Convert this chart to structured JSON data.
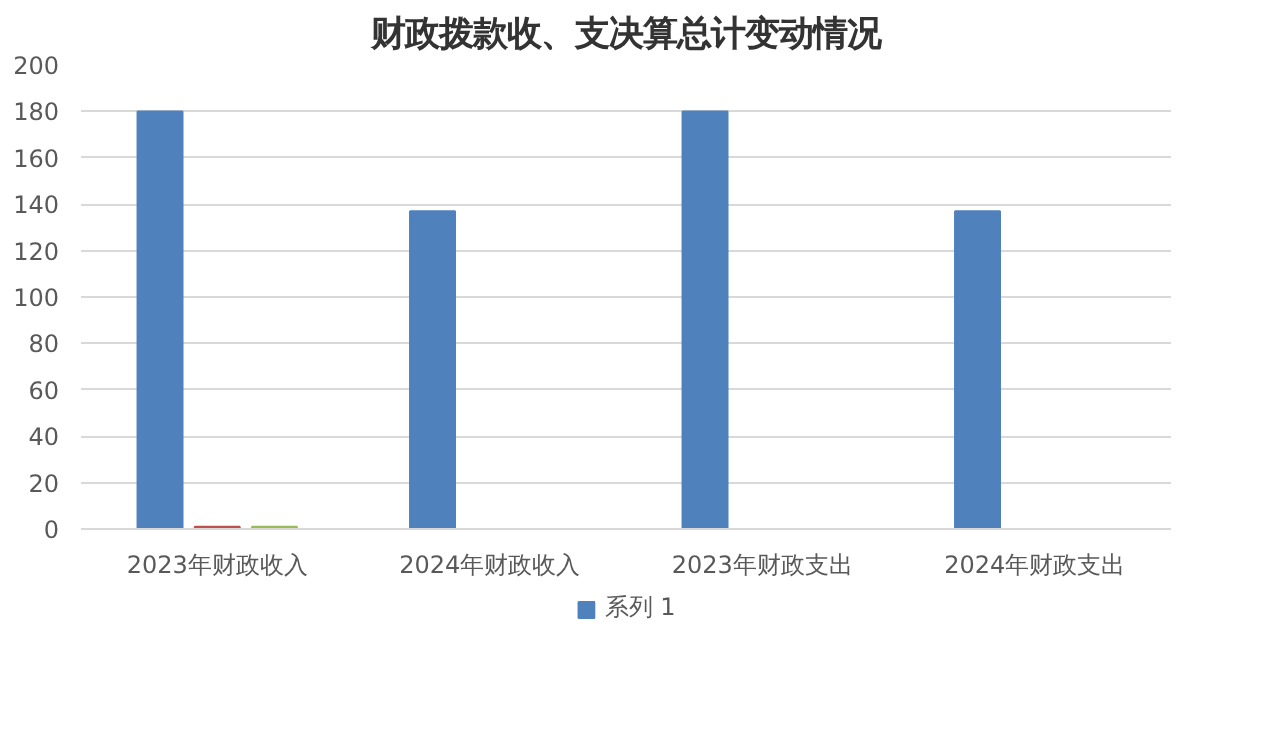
{
  "chart_data": {
    "type": "bar",
    "title": "财政拨款收、支决算总计变动情况",
    "categories": [
      "2023年财政收入",
      "2024年财政收入",
      "2023年财政支出",
      "2024年财政支出"
    ],
    "series": [
      {
        "name": "系列 1",
        "color": "#4f81bd",
        "values": [
          180,
          137,
          180,
          137
        ]
      },
      {
        "color": "#c0504d",
        "values": [
          1,
          null,
          null,
          null
        ]
      },
      {
        "color": "#9bbb59",
        "values": [
          1,
          null,
          null,
          null
        ]
      }
    ],
    "ylim": [
      0,
      200
    ],
    "yticks": [
      0,
      20,
      40,
      60,
      80,
      100,
      120,
      140,
      160,
      180,
      200
    ],
    "grid": "y",
    "legend": "bottom"
  }
}
